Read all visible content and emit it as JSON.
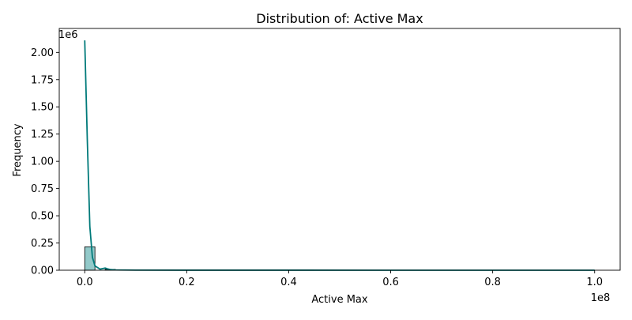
{
  "chart_data": {
    "type": "bar",
    "subtype": "histogram-with-kde",
    "title": "Distribution of: Active Max",
    "xlabel": "Active Max",
    "ylabel": "Frequency",
    "x_offset_text": "1e8",
    "y_offset_text": "1e6",
    "xlim": [
      -0.05,
      1.05
    ],
    "ylim": [
      0,
      2.22
    ],
    "x_scale_factor": 100000000,
    "y_scale_factor": 1000000,
    "x_ticks": [
      0.0,
      0.2,
      0.4,
      0.6,
      0.8,
      1.0
    ],
    "x_tick_labels": [
      "0.0",
      "0.2",
      "0.4",
      "0.6",
      "0.8",
      "1.0"
    ],
    "y_ticks": [
      0.0,
      0.25,
      0.5,
      0.75,
      1.0,
      1.25,
      1.5,
      1.75,
      2.0
    ],
    "y_tick_labels": [
      "0.00",
      "0.25",
      "0.50",
      "0.75",
      "1.00",
      "1.25",
      "1.50",
      "1.75",
      "2.00"
    ],
    "grid": false,
    "legend": "none",
    "colors": {
      "bar_fill": "#7fbfbf",
      "bar_edge": "#000000",
      "kde_line": "#007a7a"
    },
    "bins": {
      "edges": [
        0.0,
        0.02,
        0.04,
        0.06,
        0.08,
        0.1
      ],
      "counts": [
        0.215,
        0.0,
        0.008,
        0.0,
        0.0
      ]
    },
    "kde": {
      "x": [
        0.0,
        0.005,
        0.01,
        0.015,
        0.02,
        0.03,
        0.04,
        0.045,
        0.05,
        0.06,
        0.08,
        0.1,
        0.2,
        0.4,
        0.6,
        0.8,
        1.0
      ],
      "y": [
        2.11,
        1.2,
        0.4,
        0.12,
        0.04,
        0.01,
        0.02,
        0.012,
        0.006,
        0.003,
        0.002,
        0.001,
        0.0005,
        0.0003,
        0.0002,
        0.0001,
        0.0
      ]
    }
  }
}
